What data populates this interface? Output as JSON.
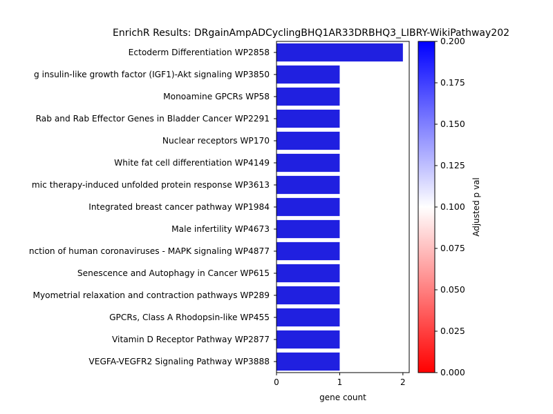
{
  "chart_data": {
    "type": "bar",
    "orientation": "horizontal",
    "title": "EnrichR Results: DRgainAmpADCyclingBHQ1AR33DRBHQ3_LIBRY-WikiPathway202",
    "xlabel": "gene count",
    "ylabel": "",
    "xlim": [
      0,
      2.1
    ],
    "xticks": [
      0,
      1,
      2
    ],
    "grid": false,
    "categories": [
      "Ectoderm Differentiation WP2858",
      "g insulin-like growth factor (IGF1)-Akt signaling WP3850",
      "Monoamine GPCRs WP58",
      "Rab and Rab Effector Genes in Bladder Cancer WP2291",
      "Nuclear receptors WP170",
      "White fat cell differentiation WP4149",
      "mic therapy-induced unfolded protein response WP3613",
      "Integrated breast cancer pathway WP1984",
      "Male infertility WP4673",
      "nction of human coronaviruses - MAPK signaling WP4877",
      "Senescence and Autophagy in Cancer WP615",
      "Myometrial relaxation and contraction pathways WP289",
      "GPCRs, Class A Rhodopsin-like WP455",
      "Vitamin D Receptor Pathway WP2877",
      "VEGFA-VEGFR2 Signaling Pathway WP3888"
    ],
    "values": [
      2,
      1,
      1,
      1,
      1,
      1,
      1,
      1,
      1,
      1,
      1,
      1,
      1,
      1,
      1
    ],
    "bar_color": "#2020e0",
    "colorbar": {
      "label": "Adjusted p val",
      "range": [
        0.0,
        0.2
      ],
      "ticks": [
        "0.000",
        "0.025",
        "0.050",
        "0.075",
        "0.100",
        "0.125",
        "0.150",
        "0.175",
        "0.200"
      ],
      "colors": [
        "#ff0000",
        "#ffffff",
        "#0000ff"
      ]
    }
  }
}
